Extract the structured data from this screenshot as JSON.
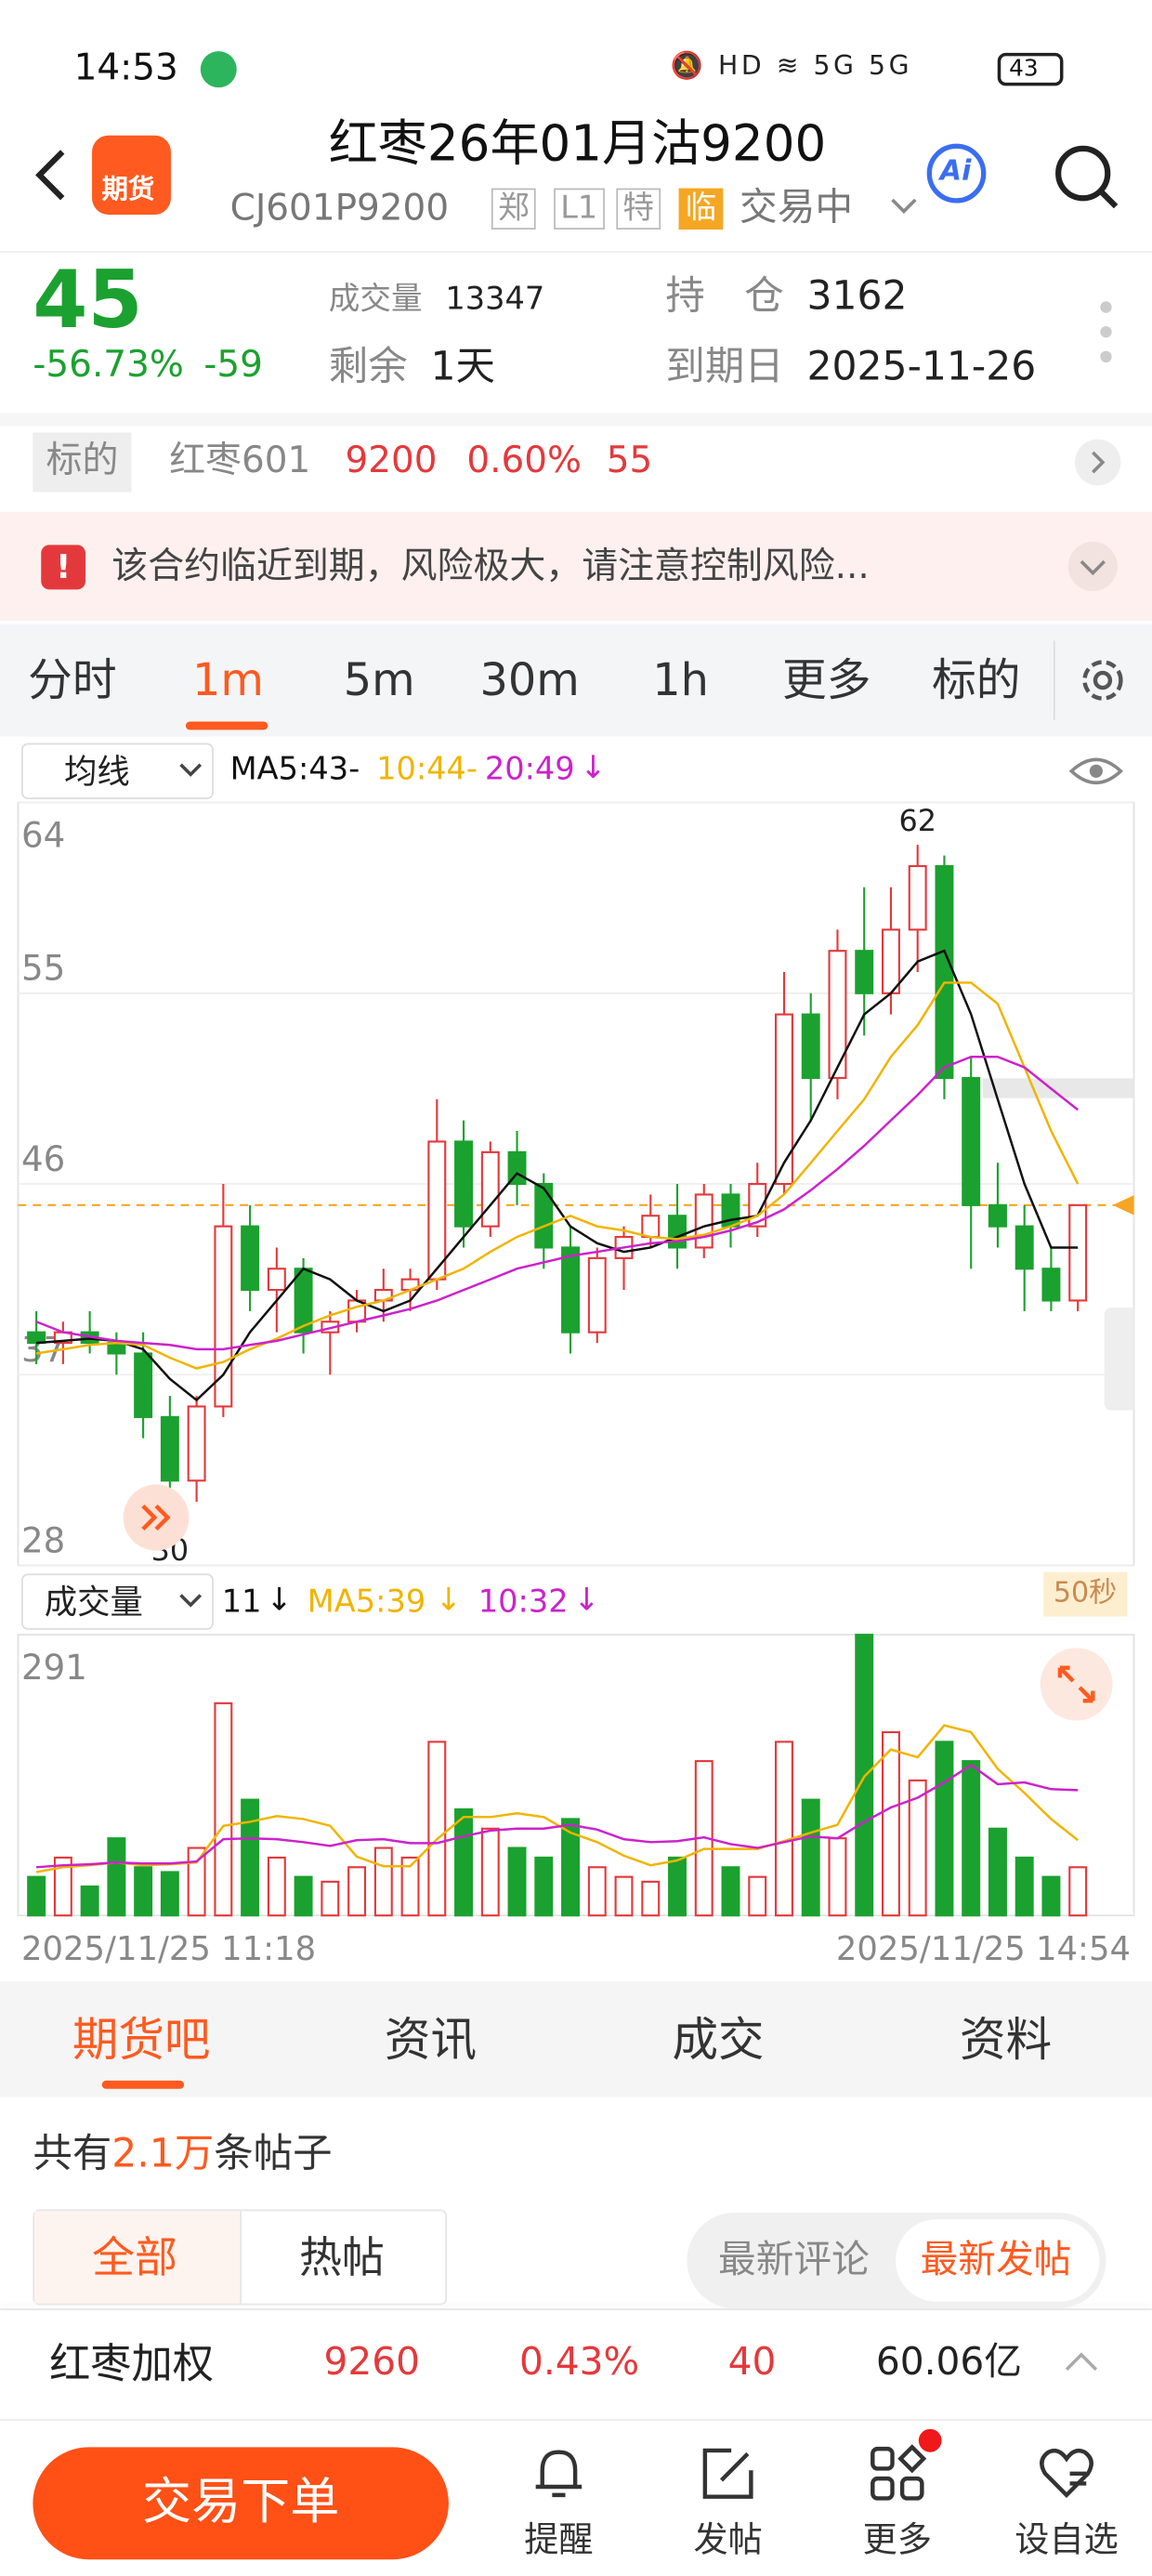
{
  "status_bar": {
    "time": "14:53",
    "battery": "43"
  },
  "header": {
    "app_badge": "期货",
    "title": "红枣26年01月沽9200",
    "code": "CJ601P9200",
    "tags": [
      "郑",
      "L1",
      "特",
      "临"
    ],
    "status": "交易中",
    "ai": "Ai"
  },
  "quote": {
    "price": "45",
    "change_pct": "-56.73%",
    "change": "-59",
    "volume_label": "成交量",
    "volume": "13347",
    "oi_label": "持　仓",
    "oi": "3162",
    "remaining_label": "剩余",
    "remaining": "1天",
    "expiry_label": "到期日",
    "expiry": "2025-11-26"
  },
  "underlying": {
    "label": "标的",
    "name": "红枣601",
    "price": "9200",
    "pct": "0.60%",
    "change": "55"
  },
  "warning": "该合约临近到期，风险极大，请注意控制风险...",
  "tabs": [
    "分时",
    "1m",
    "5m",
    "30m",
    "1h",
    "更多",
    "标的"
  ],
  "chart_data": [
    {
      "type": "candlestick",
      "selector": "均线",
      "ylim": [
        28,
        64
      ],
      "yticks": [
        28,
        37,
        46,
        55,
        64
      ],
      "grid": true,
      "reference_line": 45,
      "annotations": [
        "62",
        "30"
      ],
      "open": [
        39,
        38.5,
        39,
        38.5,
        38,
        35,
        32,
        35.5,
        44,
        41,
        42,
        39,
        39.5,
        40.5,
        41,
        41.5,
        48,
        44,
        47.5,
        46,
        43,
        39,
        42.5,
        43.5,
        44.5,
        43,
        45.5,
        44,
        46,
        54,
        51,
        57,
        55,
        58,
        61,
        51,
        45,
        44,
        42,
        40.5
      ],
      "high": [
        40,
        39.5,
        40,
        39,
        39,
        36,
        36,
        46,
        45,
        43,
        42.5,
        40,
        41,
        42,
        42,
        50,
        49,
        48,
        48.5,
        46.5,
        44,
        43,
        44,
        45.5,
        46,
        46,
        46,
        47,
        56,
        55,
        58,
        60,
        60,
        62,
        61.5,
        52,
        47,
        45,
        43,
        45
      ],
      "low": [
        37.5,
        37.5,
        38,
        37,
        34,
        30,
        31,
        35,
        40,
        39,
        38,
        37,
        39,
        39.5,
        40,
        41,
        43,
        43.5,
        45,
        42,
        38,
        38.5,
        41,
        43,
        42,
        42.5,
        43,
        43.5,
        45.5,
        49,
        50,
        53,
        54,
        56,
        50,
        42,
        43,
        40,
        40,
        40
      ],
      "close": [
        38.5,
        39,
        38.5,
        38,
        35,
        32,
        35.5,
        44,
        41,
        42,
        39,
        39.5,
        40.5,
        41,
        41.5,
        48,
        44,
        47.5,
        46,
        43,
        39,
        42.5,
        43.5,
        44.5,
        43,
        45.5,
        44,
        46,
        54,
        51,
        57,
        55,
        58,
        61,
        51,
        45,
        44,
        42,
        40.5,
        45
      ],
      "up_color": "#e4393c",
      "down_color": "#1ba12f",
      "series": [
        {
          "name": "MA5:43-",
          "color": "#111111",
          "values": [
            38.5,
            38.6,
            38.7,
            38.6,
            38.2,
            36.8,
            35.8,
            37,
            39,
            40.5,
            42,
            41.5,
            40.5,
            40,
            40.5,
            42,
            43.5,
            45,
            46.5,
            45.8,
            44,
            43.2,
            42.8,
            43,
            43.5,
            44,
            44.3,
            44.5,
            47,
            49,
            51.5,
            54,
            55,
            56.5,
            57,
            54,
            50,
            46,
            43,
            43
          ]
        },
        {
          "name": "10:44-",
          "color": "#f0b400",
          "values": [
            38,
            38.2,
            38.4,
            38.5,
            38.4,
            37.8,
            37.3,
            37.6,
            38.2,
            38.7,
            39.3,
            39.8,
            40.2,
            40.5,
            41,
            41.5,
            42,
            42.8,
            43.5,
            44,
            44.5,
            44,
            43.8,
            43.5,
            43.4,
            43.6,
            44,
            44.5,
            45.5,
            47,
            48.5,
            50,
            52,
            53.5,
            55.5,
            55.5,
            54.5,
            51.5,
            48.5,
            46
          ]
        },
        {
          "name": "20:49",
          "color": "#cc22cc",
          "values": [
            39.5,
            39,
            38.8,
            38.6,
            38.5,
            38.4,
            38.2,
            38.2,
            38.4,
            38.6,
            38.9,
            39.2,
            39.5,
            39.8,
            40.1,
            40.5,
            41,
            41.5,
            42,
            42.3,
            42.6,
            42.8,
            43,
            43.2,
            43.3,
            43.5,
            43.8,
            44.2,
            44.8,
            45.7,
            46.7,
            47.8,
            49,
            50.2,
            51.5,
            52,
            52,
            51.5,
            50.5,
            49.5
          ]
        }
      ]
    },
    {
      "type": "bar",
      "selector": "成交量",
      "current_label": "11",
      "interval": "50秒",
      "ylim": [
        0,
        291
      ],
      "yticks": [
        291
      ],
      "values": [
        40,
        60,
        30,
        80,
        50,
        45,
        70,
        220,
        120,
        60,
        40,
        35,
        50,
        70,
        60,
        180,
        110,
        90,
        70,
        60,
        100,
        50,
        40,
        35,
        60,
        160,
        50,
        40,
        180,
        120,
        80,
        291,
        190,
        140,
        180,
        160,
        90,
        60,
        40,
        50
      ],
      "series": [
        {
          "name": "MA5:39",
          "color": "#f0b400",
          "values": [
            45,
            50,
            52,
            55,
            52,
            53,
            55,
            93,
            97,
            103,
            100,
            93,
            61,
            51,
            51,
            79,
            102,
            102,
            106,
            102,
            86,
            76,
            62,
            52,
            57,
            69,
            69,
            69,
            77,
            86,
            94,
            144,
            172,
            164,
            197,
            190,
            152,
            127,
            100,
            78
          ]
        },
        {
          "name": "10:32",
          "color": "#cc22cc",
          "values": [
            50,
            52,
            53,
            55,
            54,
            54,
            56,
            79,
            80,
            79,
            76,
            72,
            78,
            79,
            75,
            75,
            82,
            88,
            90,
            90,
            94,
            89,
            79,
            76,
            77,
            81,
            74,
            70,
            76,
            82,
            80,
            97,
            112,
            122,
            138,
            156,
            136,
            138,
            131,
            130
          ]
        }
      ],
      "x_labels": [
        "2025/11/25 11:18",
        "2025/11/25 14:54"
      ]
    }
  ],
  "sections": [
    "期货吧",
    "资讯",
    "成交",
    "资料"
  ],
  "posts": {
    "prefix": "共有",
    "count": "2.1万",
    "suffix": "条帖子",
    "filters": [
      "全部",
      "热帖"
    ],
    "sorts": [
      "最新评论",
      "最新发帖"
    ]
  },
  "index_bar": {
    "name": "红枣加权",
    "price": "9260",
    "pct": "0.43%",
    "change": "40",
    "turnover": "60.06亿"
  },
  "nav": {
    "trade": "交易下单",
    "items": [
      "提醒",
      "发帖",
      "更多",
      "设自选"
    ]
  }
}
